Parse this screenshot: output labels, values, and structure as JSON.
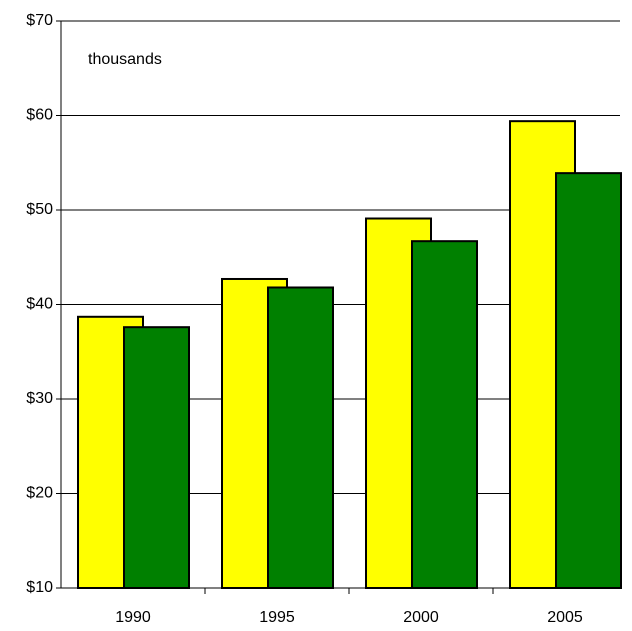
{
  "chart_data": {
    "type": "bar",
    "annotation": "thousands",
    "categories": [
      "1990",
      "1995",
      "2000",
      "2005"
    ],
    "series": [
      {
        "color": "#ffff00",
        "values": [
          38.7,
          42.7,
          49.1,
          59.4
        ]
      },
      {
        "color": "#008000",
        "values": [
          37.6,
          41.8,
          46.7,
          53.9
        ]
      }
    ],
    "ylim": [
      10,
      70
    ],
    "yticks": [
      {
        "value": 10,
        "label": "$10"
      },
      {
        "value": 20,
        "label": "$20"
      },
      {
        "value": 30,
        "label": "$30"
      },
      {
        "value": 40,
        "label": "$40"
      },
      {
        "value": 50,
        "label": "$50"
      },
      {
        "value": 60,
        "label": "$60"
      },
      {
        "value": 70,
        "label": "$70"
      }
    ],
    "grid": true
  }
}
